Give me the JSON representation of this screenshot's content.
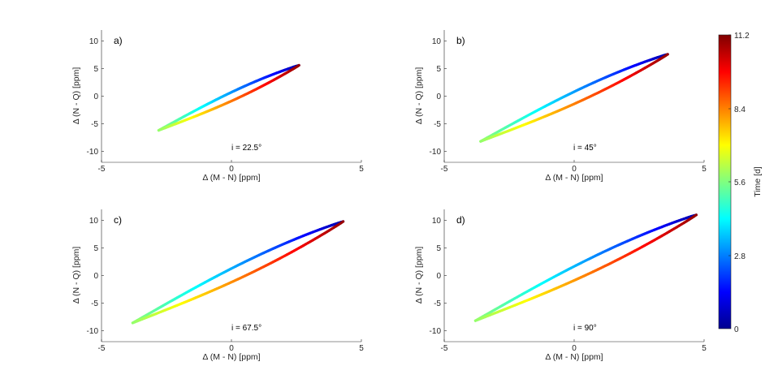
{
  "chart_data": [
    {
      "type": "line",
      "panel": "a)",
      "annotation": "i = 22.5°",
      "xlabel": "Δ (M - N) [ppm]",
      "ylabel": "Δ (N - Q) [ppm]",
      "xlim": [
        -5,
        5
      ],
      "ylim": [
        -12,
        12
      ],
      "xticks": [
        -5,
        0,
        5
      ],
      "yticks": [
        10,
        5,
        0,
        -5,
        -10
      ],
      "loop": {
        "start": [
          2.6,
          5.6
        ],
        "end": [
          -2.8,
          -6.2
        ],
        "width": 0.25,
        "upper": "blue-to-cyan",
        "lower": "red-to-yellow"
      }
    },
    {
      "type": "line",
      "panel": "b)",
      "annotation": "i = 45°",
      "xlabel": "Δ (M - N) [ppm]",
      "ylabel": "Δ (N - Q) [ppm]",
      "xlim": [
        -5,
        5
      ],
      "ylim": [
        -12,
        12
      ],
      "xticks": [
        -5,
        0,
        5
      ],
      "yticks": [
        10,
        5,
        0,
        -5,
        -10
      ],
      "loop": {
        "start": [
          3.6,
          7.6
        ],
        "end": [
          -3.6,
          -8.2
        ],
        "width": 0.35,
        "upper": "blue-to-cyan",
        "lower": "red-to-yellow"
      }
    },
    {
      "type": "line",
      "panel": "c)",
      "annotation": "i = 67.5°",
      "xlabel": "Δ (M - N) [ppm]",
      "ylabel": "Δ (N - Q) [ppm]",
      "xlim": [
        -5,
        5
      ],
      "ylim": [
        -12,
        12
      ],
      "xticks": [
        -5,
        0,
        5
      ],
      "yticks": [
        10,
        5,
        0,
        -5,
        -10
      ],
      "loop": {
        "start": [
          4.3,
          9.8
        ],
        "end": [
          -3.8,
          -8.6
        ],
        "width": 0.4,
        "upper": "blue-to-cyan",
        "lower": "red-to-yellow"
      }
    },
    {
      "type": "line",
      "panel": "d)",
      "annotation": "i = 90°",
      "xlabel": "Δ (M - N) [ppm]",
      "ylabel": "Δ (N - Q) [ppm]",
      "xlim": [
        -5,
        5
      ],
      "ylim": [
        -12,
        12
      ],
      "xticks": [
        -5,
        0,
        5
      ],
      "yticks": [
        10,
        5,
        0,
        -5,
        -10
      ],
      "loop": {
        "start": [
          4.7,
          11.0
        ],
        "end": [
          -3.8,
          -8.2
        ],
        "width": 0.42,
        "upper": "blue-to-cyan",
        "lower": "red-to-yellow"
      }
    }
  ],
  "colorbar": {
    "label": "Time [d]",
    "ticks": [
      "11.2",
      "8.4",
      "5.6",
      "2.8",
      "0"
    ],
    "range": [
      0,
      11.2
    ],
    "colormap": "jet"
  }
}
